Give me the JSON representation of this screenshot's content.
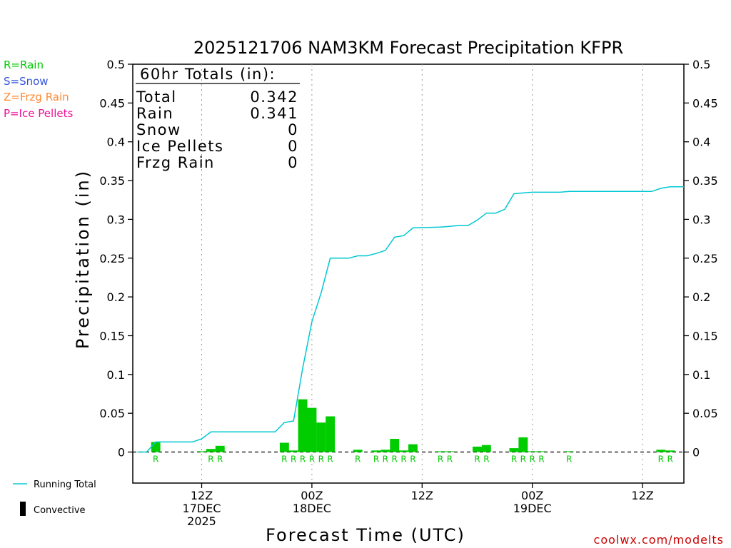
{
  "chart_data": {
    "type": "bar",
    "title": "2025121706 NAM3KM Forecast Precipitation KFPR",
    "xlabel": "Forecast Time (UTC)",
    "ylabel": "Precipitation (in)",
    "ylim": [
      -0.04,
      0.5
    ],
    "xlim_hours": [
      -1.5,
      58.5
    ],
    "yticks": [
      "0.5",
      "0.45",
      "0.4",
      "0.35",
      "0.3",
      "0.25",
      "0.2",
      "0.15",
      "0.1",
      "0.05",
      "0"
    ],
    "ytick_values": [
      0.5,
      0.45,
      0.4,
      0.35,
      0.3,
      0.25,
      0.2,
      0.15,
      0.1,
      0.05,
      0
    ],
    "xticks": [
      {
        "hour": 6,
        "line1": "12Z",
        "line2": "17DEC",
        "line3": "2025"
      },
      {
        "hour": 18,
        "line1": "00Z",
        "line2": "18DEC",
        "line3": ""
      },
      {
        "hour": 30,
        "line1": "12Z",
        "line2": "",
        "line3": ""
      },
      {
        "hour": 42,
        "line1": "00Z",
        "line2": "19DEC",
        "line3": ""
      },
      {
        "hour": 54,
        "line1": "12Z",
        "line2": "",
        "line3": ""
      }
    ],
    "totals_box": {
      "heading": "60hr Totals (in):",
      "rows": [
        {
          "label": "Total",
          "value": "0.342"
        },
        {
          "label": "Rain",
          "value": "0.341"
        },
        {
          "label": "Snow",
          "value": "0"
        },
        {
          "label": "Ice Pellets",
          "value": "0"
        },
        {
          "label": "Frzg Rain",
          "value": "0"
        }
      ]
    },
    "precip_type_legend": [
      {
        "text": "R=Rain",
        "color": "#00cc00"
      },
      {
        "text": "S=Snow",
        "color": "#3355dd"
      },
      {
        "text": "Z=Frzg Rain",
        "color": "#ff8833"
      },
      {
        "text": "P=Ice Pellets",
        "color": "#ee1199"
      }
    ],
    "bottom_legend": {
      "running_total": "Running Total",
      "convective": "Convective"
    },
    "bar_color": "#00cc00",
    "line_color": "#00c8d2",
    "bars": [
      {
        "hour": 1,
        "value": 0.013
      },
      {
        "hour": 6,
        "value": 0.001
      },
      {
        "hour": 7,
        "value": 0.004
      },
      {
        "hour": 8,
        "value": 0.008
      },
      {
        "hour": 15,
        "value": 0.012
      },
      {
        "hour": 16,
        "value": 0.002
      },
      {
        "hour": 17,
        "value": 0.068
      },
      {
        "hour": 18,
        "value": 0.057
      },
      {
        "hour": 19,
        "value": 0.038
      },
      {
        "hour": 20,
        "value": 0.046
      },
      {
        "hour": 23,
        "value": 0.003
      },
      {
        "hour": 25,
        "value": 0.002
      },
      {
        "hour": 26,
        "value": 0.003
      },
      {
        "hour": 27,
        "value": 0.017
      },
      {
        "hour": 28,
        "value": 0.002
      },
      {
        "hour": 29,
        "value": 0.01
      },
      {
        "hour": 32,
        "value": 0.001
      },
      {
        "hour": 33,
        "value": 0.001
      },
      {
        "hour": 36,
        "value": 0.007
      },
      {
        "hour": 37,
        "value": 0.009
      },
      {
        "hour": 40,
        "value": 0.005
      },
      {
        "hour": 41,
        "value": 0.019
      },
      {
        "hour": 42,
        "value": 0.001
      },
      {
        "hour": 43,
        "value": 0.001
      },
      {
        "hour": 46,
        "value": 0.001
      },
      {
        "hour": 56,
        "value": 0.003
      },
      {
        "hour": 57,
        "value": 0.002
      }
    ],
    "type_markers": [
      {
        "hour": 1,
        "text": "R"
      },
      {
        "hour": 7,
        "text": "R"
      },
      {
        "hour": 8,
        "text": "R"
      },
      {
        "hour": 15,
        "text": "R"
      },
      {
        "hour": 16,
        "text": "R"
      },
      {
        "hour": 17,
        "text": "R"
      },
      {
        "hour": 18,
        "text": "R"
      },
      {
        "hour": 19,
        "text": "R"
      },
      {
        "hour": 20,
        "text": "R"
      },
      {
        "hour": 23,
        "text": "R"
      },
      {
        "hour": 25,
        "text": "R"
      },
      {
        "hour": 26,
        "text": "R"
      },
      {
        "hour": 27,
        "text": "R"
      },
      {
        "hour": 28,
        "text": "R"
      },
      {
        "hour": 29,
        "text": "R"
      },
      {
        "hour": 32,
        "text": "R"
      },
      {
        "hour": 33,
        "text": "R"
      },
      {
        "hour": 36,
        "text": "R"
      },
      {
        "hour": 37,
        "text": "R"
      },
      {
        "hour": 40,
        "text": "R"
      },
      {
        "hour": 41,
        "text": "R"
      },
      {
        "hour": 42,
        "text": "R"
      },
      {
        "hour": 43,
        "text": "R"
      },
      {
        "hour": 46,
        "text": "R"
      },
      {
        "hour": 56,
        "text": "R"
      },
      {
        "hour": 57,
        "text": "R"
      }
    ],
    "running_total": [
      {
        "hour": -1,
        "value": 0
      },
      {
        "hour": 0,
        "value": 0
      },
      {
        "hour": 1,
        "value": 0.013
      },
      {
        "hour": 5,
        "value": 0.013
      },
      {
        "hour": 6,
        "value": 0.017
      },
      {
        "hour": 7,
        "value": 0.026
      },
      {
        "hour": 14,
        "value": 0.026
      },
      {
        "hour": 15,
        "value": 0.038
      },
      {
        "hour": 16,
        "value": 0.04
      },
      {
        "hour": 17,
        "value": 0.108
      },
      {
        "hour": 18,
        "value": 0.168
      },
      {
        "hour": 19,
        "value": 0.205
      },
      {
        "hour": 20,
        "value": 0.25
      },
      {
        "hour": 22,
        "value": 0.25
      },
      {
        "hour": 23,
        "value": 0.253
      },
      {
        "hour": 24,
        "value": 0.253
      },
      {
        "hour": 25,
        "value": 0.256
      },
      {
        "hour": 26,
        "value": 0.26
      },
      {
        "hour": 27,
        "value": 0.277
      },
      {
        "hour": 28,
        "value": 0.279
      },
      {
        "hour": 29,
        "value": 0.289
      },
      {
        "hour": 32,
        "value": 0.29
      },
      {
        "hour": 33,
        "value": 0.291
      },
      {
        "hour": 34,
        "value": 0.292
      },
      {
        "hour": 35,
        "value": 0.292
      },
      {
        "hour": 36,
        "value": 0.299
      },
      {
        "hour": 37,
        "value": 0.308
      },
      {
        "hour": 38,
        "value": 0.308
      },
      {
        "hour": 39,
        "value": 0.313
      },
      {
        "hour": 40,
        "value": 0.333
      },
      {
        "hour": 41,
        "value": 0.334
      },
      {
        "hour": 42,
        "value": 0.335
      },
      {
        "hour": 45,
        "value": 0.335
      },
      {
        "hour": 46,
        "value": 0.336
      },
      {
        "hour": 55,
        "value": 0.336
      },
      {
        "hour": 56,
        "value": 0.34
      },
      {
        "hour": 57,
        "value": 0.342
      },
      {
        "hour": 58.5,
        "value": 0.342
      }
    ]
  },
  "credit": "coolwx.com/modelts"
}
